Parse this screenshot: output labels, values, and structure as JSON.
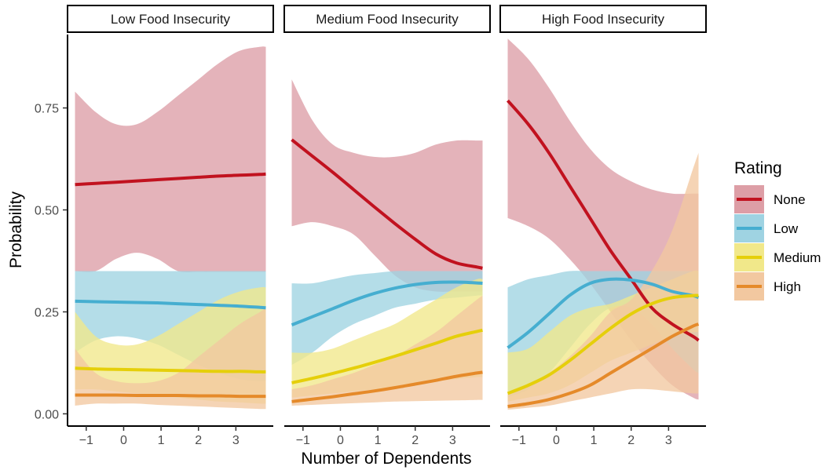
{
  "chart_data": {
    "type": "line",
    "xlabel": "Number of Dependents",
    "ylabel": "Probability",
    "xlim": [
      -1.5,
      4.0
    ],
    "ylim": [
      -0.03,
      0.93
    ],
    "x_ticks": [
      -1,
      0,
      1,
      2,
      3
    ],
    "x_tick_labels": [
      "−1",
      "0",
      "1",
      "2",
      "3"
    ],
    "y_ticks": [
      0.0,
      0.25,
      0.5,
      0.75
    ],
    "y_tick_labels": [
      "0.00",
      "0.25",
      "0.50",
      "0.75"
    ],
    "grid": false,
    "legend": {
      "title": "Rating",
      "position": "right",
      "entries": [
        "None",
        "Low",
        "Medium",
        "High"
      ]
    },
    "colors": {
      "None": "#c1121f",
      "Low": "#46aed0",
      "Medium": "#e5cf0a",
      "High": "#e58a2a"
    },
    "band_colors": {
      "None": "#dd9ea6",
      "Low": "#9fd3e2",
      "Medium": "#f1e88a",
      "High": "#f2c8a0"
    },
    "x_values": [
      -1.3,
      -0.75,
      -0.2,
      0.35,
      0.9,
      1.45,
      2.0,
      2.55,
      3.1,
      3.65,
      3.8
    ],
    "panels": [
      {
        "title": "Low Food Insecurity",
        "series": [
          {
            "name": "None",
            "fit": [
              0.562,
              0.565,
              0.568,
              0.571,
              0.574,
              0.577,
              0.58,
              0.583,
              0.585,
              0.587,
              0.588
            ],
            "lower": [
              0.35,
              0.35,
              0.38,
              0.395,
              0.38,
              0.35,
              0.348,
              0.348,
              0.348,
              0.348,
              0.348
            ],
            "upper": [
              0.79,
              0.74,
              0.71,
              0.71,
              0.74,
              0.78,
              0.82,
              0.86,
              0.89,
              0.9,
              0.9
            ]
          },
          {
            "name": "Low",
            "fit": [
              0.276,
              0.275,
              0.274,
              0.273,
              0.272,
              0.27,
              0.268,
              0.266,
              0.264,
              0.261,
              0.26
            ],
            "lower": [
              0.15,
              0.18,
              0.19,
              0.185,
              0.17,
              0.145,
              0.12,
              0.1,
              0.085,
              0.08,
              0.08
            ],
            "upper": [
              0.35,
              0.35,
              0.35,
              0.35,
              0.35,
              0.35,
              0.35,
              0.35,
              0.35,
              0.35,
              0.35
            ]
          },
          {
            "name": "Medium",
            "fit": [
              0.112,
              0.11,
              0.109,
              0.108,
              0.107,
              0.106,
              0.105,
              0.104,
              0.104,
              0.103,
              0.103
            ],
            "lower": [
              0.06,
              0.06,
              0.055,
              0.05,
              0.045,
              0.04,
              0.035,
              0.03,
              0.028,
              0.025,
              0.025
            ],
            "upper": [
              0.25,
              0.19,
              0.17,
              0.17,
              0.19,
              0.22,
              0.25,
              0.28,
              0.3,
              0.31,
              0.31
            ]
          },
          {
            "name": "High",
            "fit": [
              0.046,
              0.046,
              0.046,
              0.045,
              0.045,
              0.045,
              0.044,
              0.044,
              0.043,
              0.043,
              0.043
            ],
            "lower": [
              0.02,
              0.025,
              0.025,
              0.025,
              0.022,
              0.02,
              0.018,
              0.016,
              0.014,
              0.012,
              0.012
            ],
            "upper": [
              0.16,
              0.1,
              0.08,
              0.075,
              0.08,
              0.1,
              0.14,
              0.18,
              0.22,
              0.25,
              0.26
            ]
          }
        ]
      },
      {
        "title": "Medium Food Insecurity",
        "series": [
          {
            "name": "None",
            "fit": [
              0.672,
              0.632,
              0.592,
              0.55,
              0.508,
              0.467,
              0.428,
              0.392,
              0.37,
              0.36,
              0.357
            ],
            "lower": [
              0.46,
              0.47,
              0.46,
              0.44,
              0.39,
              0.34,
              0.31,
              0.3,
              0.3,
              0.3,
              0.3
            ],
            "upper": [
              0.82,
              0.72,
              0.66,
              0.64,
              0.63,
              0.63,
              0.64,
              0.66,
              0.67,
              0.67,
              0.67
            ]
          },
          {
            "name": "Low",
            "fit": [
              0.218,
              0.238,
              0.258,
              0.278,
              0.295,
              0.308,
              0.317,
              0.322,
              0.323,
              0.321,
              0.32
            ],
            "lower": [
              0.12,
              0.15,
              0.19,
              0.22,
              0.24,
              0.26,
              0.27,
              0.28,
              0.285,
              0.29,
              0.29
            ],
            "upper": [
              0.32,
              0.32,
              0.33,
              0.34,
              0.345,
              0.35,
              0.35,
              0.35,
              0.35,
              0.35,
              0.35
            ]
          },
          {
            "name": "Medium",
            "fit": [
              0.076,
              0.087,
              0.099,
              0.112,
              0.126,
              0.141,
              0.157,
              0.173,
              0.19,
              0.202,
              0.205
            ],
            "lower": [
              0.04,
              0.045,
              0.05,
              0.055,
              0.06,
              0.068,
              0.075,
              0.08,
              0.085,
              0.09,
              0.09
            ],
            "upper": [
              0.15,
              0.15,
              0.16,
              0.18,
              0.2,
              0.22,
              0.25,
              0.28,
              0.31,
              0.33,
              0.33
            ]
          },
          {
            "name": "High",
            "fit": [
              0.03,
              0.036,
              0.042,
              0.049,
              0.056,
              0.064,
              0.073,
              0.082,
              0.092,
              0.1,
              0.102
            ],
            "lower": [
              0.02,
              0.022,
              0.024,
              0.026,
              0.028,
              0.03,
              0.031,
              0.032,
              0.033,
              0.034,
              0.034
            ],
            "upper": [
              0.06,
              0.07,
              0.085,
              0.1,
              0.12,
              0.14,
              0.17,
              0.2,
              0.24,
              0.28,
              0.29
            ]
          }
        ]
      },
      {
        "title": "High Food Insecurity",
        "series": [
          {
            "name": "None",
            "fit": [
              0.768,
              0.71,
              0.64,
              0.56,
              0.48,
              0.4,
              0.33,
              0.26,
              0.22,
              0.19,
              0.18
            ],
            "lower": [
              0.48,
              0.46,
              0.43,
              0.38,
              0.32,
              0.25,
              0.18,
              0.12,
              0.07,
              0.04,
              0.035
            ],
            "upper": [
              0.92,
              0.87,
              0.8,
              0.72,
              0.65,
              0.6,
              0.57,
              0.55,
              0.54,
              0.54,
              0.54
            ]
          },
          {
            "name": "Low",
            "fit": [
              0.162,
              0.2,
              0.245,
              0.29,
              0.32,
              0.33,
              0.328,
              0.318,
              0.3,
              0.29,
              0.285
            ],
            "lower": [
              0.04,
              0.06,
              0.1,
              0.16,
              0.22,
              0.26,
              0.26,
              0.22,
              0.16,
              0.11,
              0.1
            ],
            "upper": [
              0.31,
              0.33,
              0.34,
              0.35,
              0.35,
              0.35,
              0.35,
              0.35,
              0.35,
              0.35,
              0.35
            ]
          },
          {
            "name": "Medium",
            "fit": [
              0.05,
              0.07,
              0.095,
              0.13,
              0.17,
              0.21,
              0.245,
              0.27,
              0.285,
              0.29,
              0.29
            ],
            "lower": [
              0.03,
              0.04,
              0.05,
              0.07,
              0.1,
              0.13,
              0.15,
              0.17,
              0.19,
              0.2,
              0.2
            ],
            "upper": [
              0.15,
              0.16,
              0.2,
              0.24,
              0.26,
              0.27,
              0.29,
              0.31,
              0.33,
              0.35,
              0.35
            ]
          },
          {
            "name": "High",
            "fit": [
              0.018,
              0.025,
              0.035,
              0.05,
              0.07,
              0.1,
              0.13,
              0.16,
              0.19,
              0.215,
              0.22
            ],
            "lower": [
              0.01,
              0.015,
              0.02,
              0.03,
              0.04,
              0.05,
              0.06,
              0.06,
              0.055,
              0.05,
              0.05
            ],
            "upper": [
              0.05,
              0.07,
              0.1,
              0.14,
              0.19,
              0.25,
              0.28,
              0.35,
              0.45,
              0.6,
              0.64
            ]
          }
        ]
      }
    ]
  }
}
